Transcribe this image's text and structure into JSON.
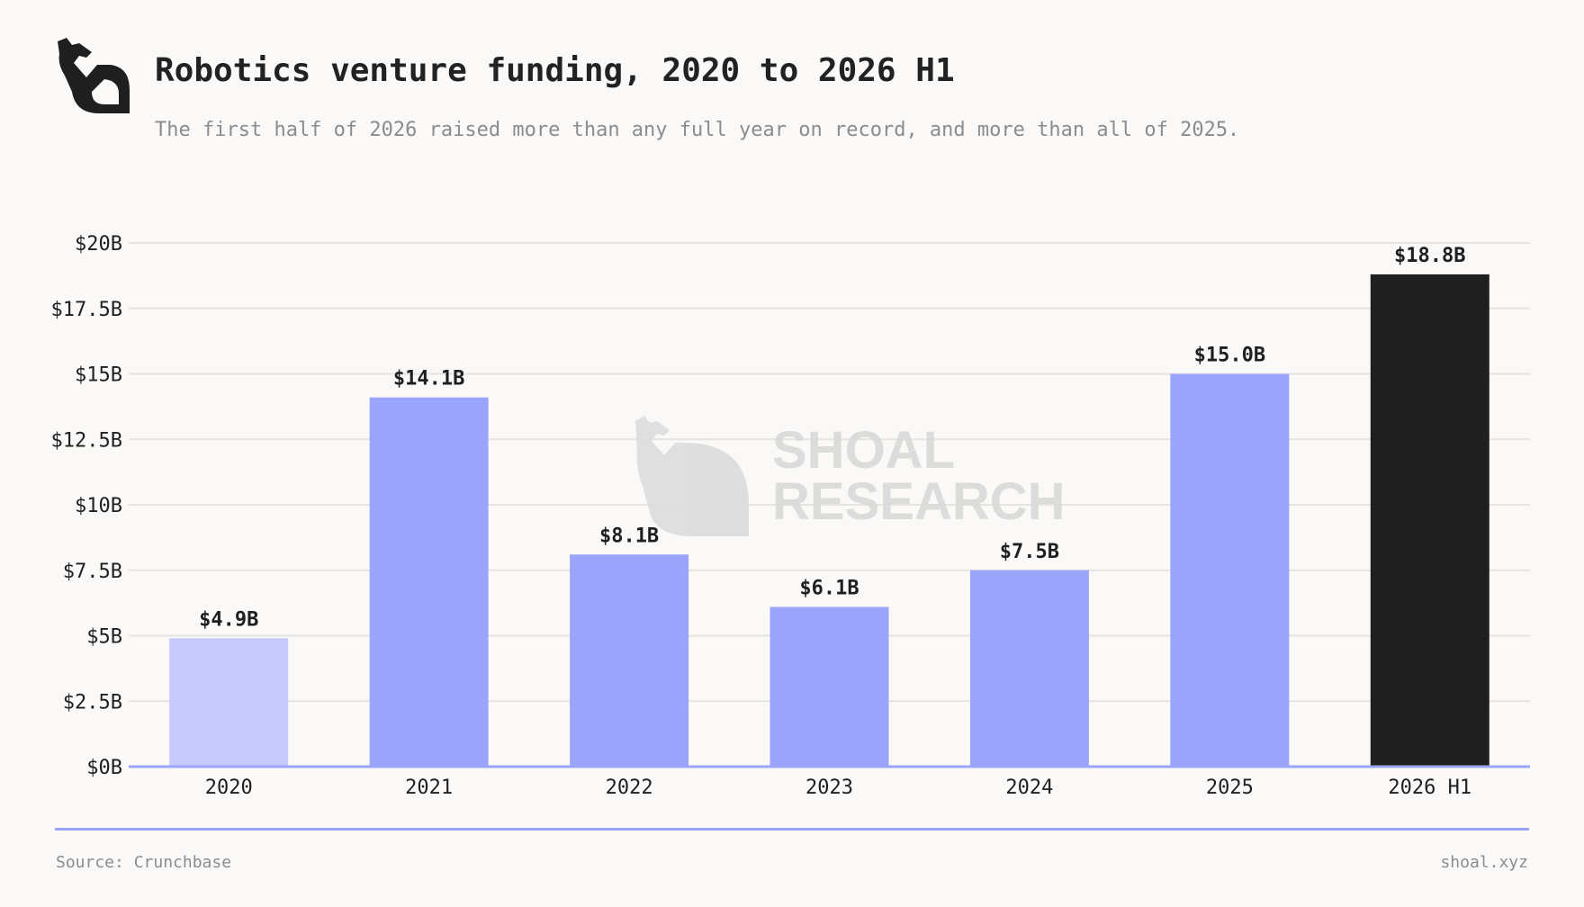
{
  "header": {
    "title": "Robotics venture funding, 2020 to 2026 H1",
    "subtitle": "The first half of 2026 raised more than any full year on record, and more than all of 2025."
  },
  "watermark": {
    "line1": "SHOAL",
    "line2": "RESEARCH"
  },
  "footer": {
    "source": "Source: Crunchbase",
    "site": "shoal.xyz"
  },
  "colors": {
    "bar_default": "#9ba4fb",
    "bar_first": "#c5c9fb",
    "bar_highlight": "#1f1f1f",
    "axis_line": "#9ba4fb",
    "gridline": "#e6e4e1",
    "watermark": "#d9d9d9"
  },
  "icons": {
    "logo": "shoal-fish-logo-icon"
  },
  "chart_data": {
    "type": "bar",
    "categories": [
      "2020",
      "2021",
      "2022",
      "2023",
      "2024",
      "2025",
      "2026 H1"
    ],
    "values": [
      4.9,
      14.1,
      8.1,
      6.1,
      7.5,
      15.0,
      18.8
    ],
    "data_labels": [
      "$4.9B",
      "$14.1B",
      "$8.1B",
      "$6.1B",
      "$7.5B",
      "$15.0B",
      "$18.8B"
    ],
    "highlight_index": 6,
    "light_index": 0,
    "ylim": [
      0,
      20
    ],
    "yticks": [
      0,
      2.5,
      5,
      7.5,
      10,
      12.5,
      15,
      17.5,
      20
    ],
    "ytick_labels": [
      "$0B",
      "$2.5B",
      "$5B",
      "$7.5B",
      "$10B",
      "$12.5B",
      "$15B",
      "$17.5B",
      "$20B"
    ],
    "title": "Robotics venture funding, 2020 to 2026 H1",
    "xlabel": "",
    "ylabel": "",
    "grid": true,
    "legend": "none"
  }
}
